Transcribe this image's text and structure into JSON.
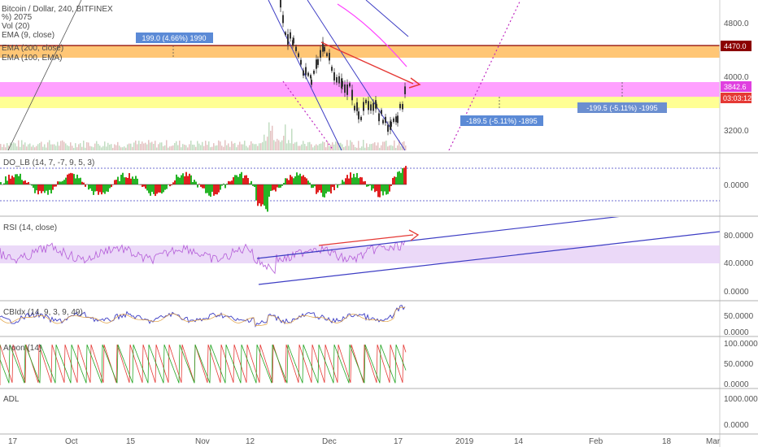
{
  "main_pane": {
    "title": "Bitcoin / Dollar, 240, BITFINEX",
    "indicators": [
      "Vol (20)",
      "EMA (9, close)",
      "EMA (200, close)",
      "EMA (100, EMA)"
    ],
    "partial_label": "%) 2075",
    "price_ticks": [
      "4800.0",
      "4000.0",
      "3200.0"
    ],
    "price_tags": [
      {
        "text": "4470.0",
        "color": "#8b0000"
      },
      {
        "text": "3842.6",
        "color": "#e040e0"
      },
      {
        "text": "03:03:12",
        "color": "#e53935"
      }
    ],
    "measure_notes": [
      "199.0 (4.66%) 1990",
      "-189.5 (-5.11%) -1895",
      "-199.5 (-5.11%) -1995"
    ]
  },
  "oscillator_panes": [
    {
      "name": "DO_LB (14, 7, -7, 9, 5, 3)",
      "ticks": [
        "0.0000"
      ]
    },
    {
      "name": "RSI (14, close)",
      "ticks": [
        "80.0000",
        "40.0000",
        "0.0000"
      ]
    },
    {
      "name": "CBIdx (14, 9, 3, 9, 49)",
      "ticks": [
        "50.0000",
        "0.0000"
      ]
    },
    {
      "name": "Aroon (14)",
      "ticks": [
        "100.0000",
        "50.0000",
        "0.0000"
      ]
    },
    {
      "name": "ADL",
      "ticks": [
        "1000.0000",
        "0.0000"
      ]
    }
  ],
  "time_axis": [
    "17",
    "Oct",
    "15",
    "Nov",
    "12",
    "Dec",
    "17",
    "2019",
    "14",
    "Feb",
    "18",
    "Mar"
  ],
  "colors": {
    "accent_blue": "#3d3dc4",
    "trend_red": "#e53935",
    "magenta_zone": "#ff80ff",
    "orange_zone": "#ffb347",
    "yellow_zone": "#ffff88",
    "bull_bar": "#26b526",
    "bear_bar": "#e02020"
  }
}
